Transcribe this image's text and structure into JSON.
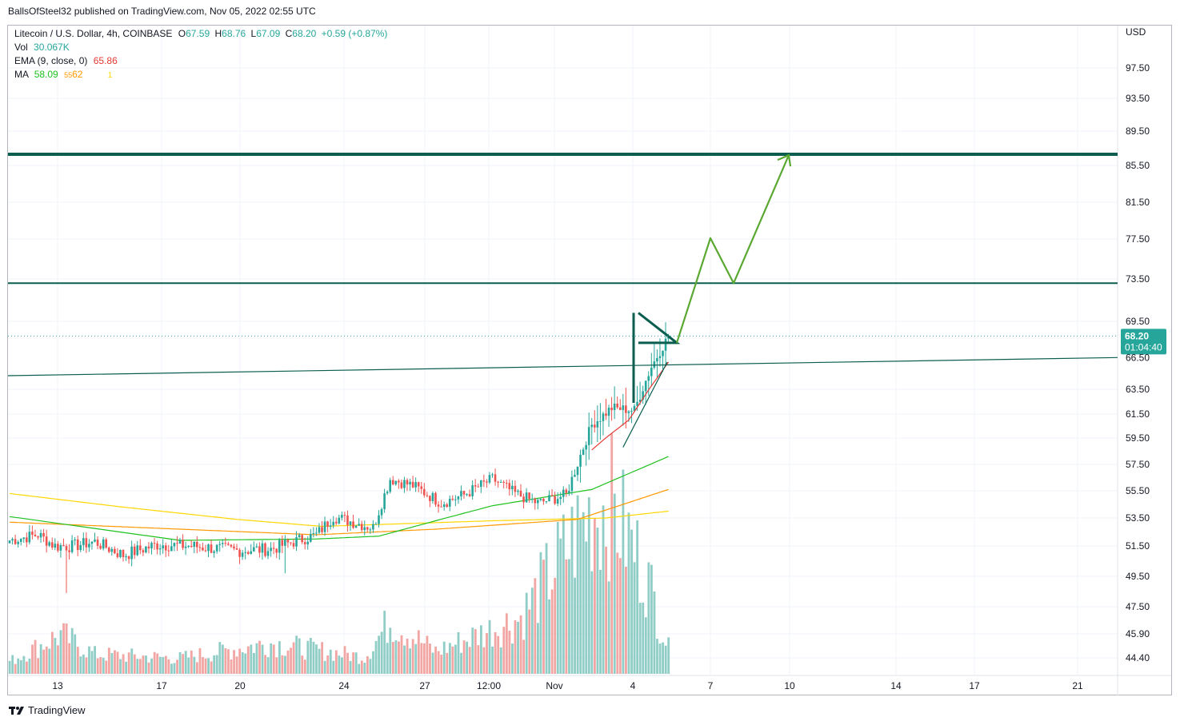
{
  "header": {
    "author": "BallsOfSteel32",
    "published_text": "published on TradingView.com, Nov 05, 2022 02:55 UTC"
  },
  "legend": {
    "symbol": "Litecoin / U.S. Dollar, 4h, COINBASE",
    "open_label": "O",
    "open": "67.59",
    "high_label": "H",
    "high": "68.76",
    "low_label": "L",
    "low": "67.09",
    "close_label": "C",
    "close": "68.20",
    "change": "+0.59 (+0.87%)",
    "vol_label": "Vol",
    "vol": "30.067K",
    "ema_label": "EMA (9, close, 0)",
    "ema": "65.86",
    "ma_label": "MA",
    "ma1": "58.09",
    "ma2": "62",
    "ma2_prefix": "55",
    "ma3": "1"
  },
  "footer": {
    "brand": "TradingView"
  },
  "colors": {
    "up": "#26a69a",
    "down": "#ef5350",
    "up_vol": "#8fcdc6",
    "down_vol": "#f2a6a4",
    "level": "#0b5e4f",
    "projection": "#5aa832",
    "ema": "#e53935",
    "ma_green": "#1fc11f",
    "ma_orange": "#ff9800",
    "ma_yellow": "#ffd600",
    "price_tag": "#26a69a",
    "grid": "#f0f3fa"
  },
  "chart_data": {
    "type": "candlestick",
    "currency": "USD",
    "price_axis_ticks": [
      44.4,
      45.9,
      47.5,
      49.5,
      51.5,
      53.5,
      55.5,
      57.5,
      59.5,
      61.5,
      63.5,
      69.5,
      73.5,
      77.5,
      81.5,
      85.5,
      89.5,
      93.5,
      97.5
    ],
    "time_axis_labels": [
      "13",
      "17",
      "20",
      "24",
      "27",
      "12:00",
      "Nov",
      "4",
      "7",
      "10",
      "14",
      "17",
      "21"
    ],
    "last_price": "68.20",
    "countdown": "01:04:40",
    "horizontal_levels": [
      86.8,
      73.1
    ],
    "trendline_from_to": [
      [
        64.7,
        66.3
      ]
    ],
    "projection_path_prices": [
      67.6,
      77.6,
      73.1,
      86.7
    ],
    "close_path_keypoints": [
      {
        "i": 0,
        "p": 51.9
      },
      {
        "i": 10,
        "p": 52.3
      },
      {
        "i": 16,
        "p": 51.5
      },
      {
        "i": 22,
        "p": 51.5
      },
      {
        "i": 30,
        "p": 51.8
      },
      {
        "i": 40,
        "p": 50.9
      },
      {
        "i": 52,
        "p": 51.6
      },
      {
        "i": 64,
        "p": 51.5
      },
      {
        "i": 80,
        "p": 51.2
      },
      {
        "i": 92,
        "p": 51.3
      },
      {
        "i": 100,
        "p": 51.8
      },
      {
        "i": 108,
        "p": 52.3
      },
      {
        "i": 114,
        "p": 53.6
      },
      {
        "i": 128,
        "p": 52.8
      },
      {
        "i": 134,
        "p": 56.4
      },
      {
        "i": 142,
        "p": 55.9
      },
      {
        "i": 152,
        "p": 54.6
      },
      {
        "i": 160,
        "p": 55.2
      },
      {
        "i": 170,
        "p": 56.4
      },
      {
        "i": 178,
        "p": 55.3
      },
      {
        "i": 186,
        "p": 54.6
      },
      {
        "i": 196,
        "p": 55.2
      },
      {
        "i": 205,
        "p": 60.6
      },
      {
        "i": 212,
        "p": 62.0
      },
      {
        "i": 220,
        "p": 61.8
      },
      {
        "i": 226,
        "p": 65.5
      },
      {
        "i": 232,
        "p": 68.2
      }
    ],
    "volume_keypoints": [
      {
        "i": 0,
        "v": 0.22
      },
      {
        "i": 18,
        "v": 0.7
      },
      {
        "i": 30,
        "v": 0.35
      },
      {
        "i": 60,
        "v": 0.28
      },
      {
        "i": 92,
        "v": 0.55
      },
      {
        "i": 125,
        "v": 0.3
      },
      {
        "i": 134,
        "v": 0.95
      },
      {
        "i": 150,
        "v": 0.4
      },
      {
        "i": 180,
        "v": 1.0
      },
      {
        "i": 205,
        "v": 2.9
      },
      {
        "i": 212,
        "v": 3.0
      },
      {
        "i": 224,
        "v": 1.8
      },
      {
        "i": 232,
        "v": 0.45
      }
    ],
    "ema_keypoints": [
      {
        "i": 205,
        "p": 58.6
      },
      {
        "i": 218,
        "p": 61.0
      },
      {
        "i": 232,
        "p": 65.9
      }
    ],
    "ma_green_keypoints": [
      {
        "i": 0,
        "p": 53.6
      },
      {
        "i": 60,
        "p": 51.9
      },
      {
        "i": 108,
        "p": 52.0
      },
      {
        "i": 130,
        "p": 52.2
      },
      {
        "i": 170,
        "p": 54.4
      },
      {
        "i": 205,
        "p": 55.6
      },
      {
        "i": 232,
        "p": 58.1
      }
    ],
    "ma_orange_keypoints": [
      {
        "i": 0,
        "p": 53.2
      },
      {
        "i": 60,
        "p": 52.7
      },
      {
        "i": 108,
        "p": 52.3
      },
      {
        "i": 150,
        "p": 52.7
      },
      {
        "i": 200,
        "p": 53.4
      },
      {
        "i": 232,
        "p": 55.6
      }
    ],
    "ma_yellow_keypoints": [
      {
        "i": 0,
        "p": 55.3
      },
      {
        "i": 40,
        "p": 54.3
      },
      {
        "i": 80,
        "p": 53.4
      },
      {
        "i": 110,
        "p": 52.9
      },
      {
        "i": 170,
        "p": 53.3
      },
      {
        "i": 210,
        "p": 53.5
      },
      {
        "i": 232,
        "p": 54.0
      }
    ]
  }
}
